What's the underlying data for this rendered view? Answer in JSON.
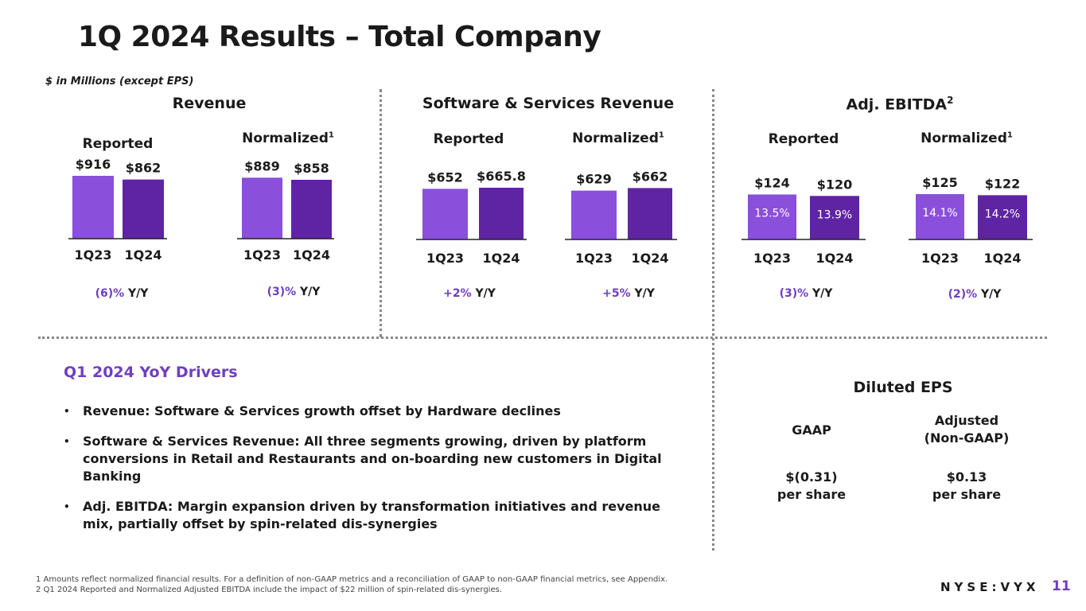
{
  "page": {
    "title": "1Q 2024 Results – Total Company",
    "units_note": "$ in Millions (except EPS)",
    "page_number": "11",
    "logo_text": "NYSE:VYX"
  },
  "colors": {
    "bar_1q23": "#8a4fdb",
    "bar_1q24": "#5f24a3",
    "accent": "#6f3fc0",
    "baseline": "#222222"
  },
  "sections": {
    "revenue": {
      "title": "Revenue"
    },
    "sns": {
      "title": "Software & Services Revenue"
    },
    "ebitda": {
      "title": "Adj. EBITDA",
      "sup": "2"
    }
  },
  "sub_labels": {
    "reported": "Reported",
    "normalized": "Normalized",
    "normalized_sup": "1"
  },
  "chart_data": [
    {
      "type": "bar",
      "title": "Revenue Reported",
      "categories": [
        "1Q23",
        "1Q24"
      ],
      "values": [
        916,
        862
      ],
      "value_labels": [
        "$916",
        "$862"
      ],
      "yoy_value": "(6)%",
      "yoy_suffix": "Y/Y",
      "ylim": [
        0,
        916
      ]
    },
    {
      "type": "bar",
      "title": "Revenue Normalized",
      "categories": [
        "1Q23",
        "1Q24"
      ],
      "values": [
        889,
        858
      ],
      "value_labels": [
        "$889",
        "$858"
      ],
      "yoy_value": "(3)%",
      "yoy_suffix": "Y/Y",
      "ylim": [
        0,
        916
      ]
    },
    {
      "type": "bar",
      "title": "Software & Services Revenue Reported",
      "categories": [
        "1Q23",
        "1Q24"
      ],
      "values": [
        652,
        665.8
      ],
      "value_labels": [
        "$652",
        "$665.8"
      ],
      "yoy_value": "+2%",
      "yoy_suffix": "Y/Y",
      "ylim": [
        0,
        665.8
      ]
    },
    {
      "type": "bar",
      "title": "Software & Services Revenue Normalized",
      "categories": [
        "1Q23",
        "1Q24"
      ],
      "values": [
        629,
        662
      ],
      "value_labels": [
        "$629",
        "$662"
      ],
      "yoy_value": "+5%",
      "yoy_suffix": "Y/Y",
      "ylim": [
        0,
        665.8
      ]
    },
    {
      "type": "bar",
      "title": "Adj. EBITDA Reported",
      "categories": [
        "1Q23",
        "1Q24"
      ],
      "values": [
        124,
        120
      ],
      "value_labels": [
        "$124",
        "$120"
      ],
      "margins": [
        "13.5%",
        "13.9%"
      ],
      "yoy_value": "(3)%",
      "yoy_suffix": "Y/Y",
      "ylim": [
        0,
        125
      ]
    },
    {
      "type": "bar",
      "title": "Adj. EBITDA Normalized",
      "categories": [
        "1Q23",
        "1Q24"
      ],
      "values": [
        125,
        122
      ],
      "value_labels": [
        "$125",
        "$122"
      ],
      "margins": [
        "14.1%",
        "14.2%"
      ],
      "yoy_value": "(2)%",
      "yoy_suffix": "Y/Y",
      "ylim": [
        0,
        125
      ]
    }
  ],
  "drivers": {
    "title": "Q1 2024 YoY Drivers",
    "bullets": [
      "Revenue: Software & Services growth offset by Hardware declines",
      "Software & Services Revenue: All three segments growing, driven by platform conversions in Retail and Restaurants and on-boarding new customers in Digital Banking",
      "Adj. EBITDA: Margin expansion driven by transformation initiatives and revenue mix, partially offset by spin-related dis-synergies"
    ]
  },
  "eps": {
    "title": "Diluted EPS",
    "gaap_label": "GAAP",
    "adjusted_label_1": "Adjusted",
    "adjusted_label_2": "(Non-GAAP)",
    "gaap_value": "$(0.31)",
    "adjusted_value": "$0.13",
    "per_share": "per share"
  },
  "footnotes": {
    "note1": "1 Amounts reflect normalized financial results. For a definition of non-GAAP metrics and a reconciliation of GAAP to non-GAAP financial metrics, see Appendix.",
    "note2": "2 Q1 2024 Reported and Normalized Adjusted EBITDA include the impact of $22 million of spin-related dis-synergies."
  }
}
